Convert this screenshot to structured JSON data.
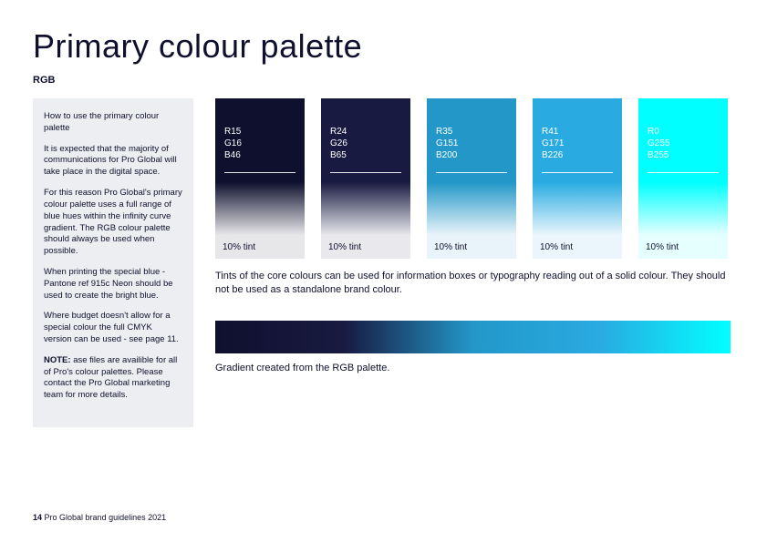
{
  "page": {
    "title": "Primary colour palette",
    "subtitle": "RGB",
    "footer_page": "14",
    "footer_text": "Pro Global brand guidelines 2021"
  },
  "sidebar": {
    "heading": "How to use the primary colour palette",
    "p1": "It is expected that the majority of communications for Pro Global will take place in the digital space.",
    "p2": "For this reason Pro Global's primary colour palette uses a full range of blue hues within the infinity curve gradient. The RGB colour palette should always be used when possible.",
    "p3": "When printing the special blue - Pantone ref 915c Neon should be used to create the bright blue.",
    "p4": "Where budget doesn't allow for a special colour the full CMYK version can be used - see page 11.",
    "note_label": "NOTE:",
    "note_text": " ase files are availible for all of Pro's colour palettes. Please contact the Pro Global marketing team for more details."
  },
  "swatches": [
    {
      "r": "R15",
      "g": "G16",
      "b": "B46",
      "hex": "#0f102e",
      "tint_hex": "#e7e7ea",
      "tint_label": "10% tint"
    },
    {
      "r": "R24",
      "g": "G26",
      "b": "B65",
      "hex": "#181a41",
      "tint_hex": "#e8e8ed",
      "tint_label": "10% tint"
    },
    {
      "r": "R35",
      "g": "G151",
      "b": "B200",
      "hex": "#2397c8",
      "tint_hex": "#e9f4fa",
      "tint_label": "10% tint"
    },
    {
      "r": "R41",
      "g": "G171",
      "b": "B226",
      "hex": "#29abe2",
      "tint_hex": "#eaf6fc",
      "tint_label": "10% tint"
    },
    {
      "r": "R0",
      "g": "G255",
      "b": "B255",
      "hex": "#00ffff",
      "tint_hex": "#e5ffff",
      "tint_label": "10% tint"
    }
  ],
  "captions": {
    "tints": "Tints of the core colours can be used for information boxes or typography reading out of a solid colour. They should not be used as a standalone brand colour.",
    "gradient": "Gradient created from the RGB palette."
  },
  "gradient": {
    "stops": [
      "#0f102e",
      "#181a41",
      "#2397c8",
      "#29abe2",
      "#00ffff"
    ]
  }
}
